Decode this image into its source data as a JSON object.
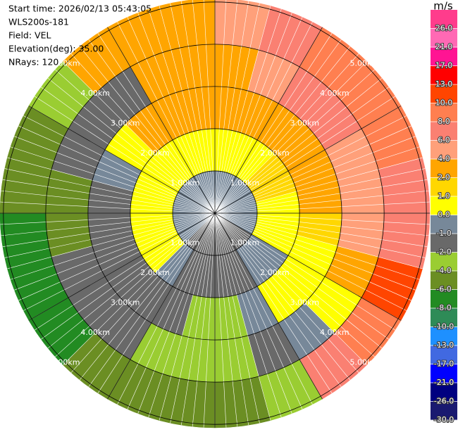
{
  "chart_data": {
    "type": "ppi",
    "header": [
      "Start time: 2026/02/13 05:43:05",
      "WLS200s-181",
      "Field: VEL",
      "Elevation(deg): 35.00",
      "NRays: 120"
    ],
    "rlim": [
      0,
      5.08
    ],
    "range_rings": [
      {
        "value": 1,
        "label": "1.00km"
      },
      {
        "value": 2,
        "label": "2.00km"
      },
      {
        "value": 3,
        "label": "3.00km"
      },
      {
        "value": 4,
        "label": "4.00km"
      },
      {
        "value": 5,
        "label": "5.00km"
      }
    ],
    "range_bins": [
      0,
      1,
      2,
      3,
      4,
      5.08
    ],
    "azimuths": [
      0,
      15,
      30,
      45,
      60,
      75,
      90,
      105,
      120,
      135,
      150,
      165,
      180,
      195,
      210,
      225,
      240,
      255,
      270,
      285,
      300,
      315,
      330,
      345
    ],
    "values": [
      [
        -1,
        0,
        2,
        2,
        4
      ],
      [
        -1,
        0,
        2,
        4,
        6
      ],
      [
        -1,
        0,
        2,
        6,
        8
      ],
      [
        -1,
        1,
        2,
        6,
        8
      ],
      [
        -1,
        1,
        2,
        4,
        8
      ],
      [
        -1,
        0,
        2,
        4,
        6
      ],
      [
        -1,
        0,
        1,
        4,
        6
      ],
      [
        -1,
        0,
        0,
        2,
        10
      ],
      [
        -2,
        -1,
        0,
        0,
        8
      ],
      [
        -2,
        -1,
        0,
        -1,
        6
      ],
      [
        -2,
        -2,
        -1,
        -2,
        -4
      ],
      [
        -2,
        -2,
        -4,
        -4,
        -6
      ],
      [
        -2,
        -2,
        -4,
        -4,
        -6
      ],
      [
        -2,
        -2,
        -2,
        -4,
        -6
      ],
      [
        -2,
        -1,
        -2,
        -2,
        -6
      ],
      [
        -1,
        0,
        -2,
        -2,
        -8
      ],
      [
        -1,
        0,
        -2,
        -2,
        -8
      ],
      [
        -1,
        0,
        -2,
        -6,
        -8
      ],
      [
        -1,
        0,
        -2,
        -6,
        -6
      ],
      [
        -1,
        0,
        -1,
        -2,
        -6
      ],
      [
        -1,
        0,
        0,
        -2,
        -4
      ],
      [
        -1,
        0,
        2,
        -2,
        2
      ],
      [
        -1,
        0,
        2,
        2,
        2
      ],
      [
        -1,
        0,
        2,
        2,
        2
      ]
    ],
    "colorbar": {
      "label": "m/s",
      "clim": [
        -30,
        30
      ],
      "ticks": [
        {
          "value": -30,
          "label": "-30.0"
        },
        {
          "value": -26,
          "label": "-26.0"
        },
        {
          "value": -21,
          "label": "-21.0"
        },
        {
          "value": -17,
          "label": "-17.0"
        },
        {
          "value": -13,
          "label": "-13.0"
        },
        {
          "value": -10,
          "label": "-10.0"
        },
        {
          "value": -8,
          "label": "-8.0"
        },
        {
          "value": -6,
          "label": "-6.0"
        },
        {
          "value": -4,
          "label": "-4.0"
        },
        {
          "value": -2,
          "label": "-2.0"
        },
        {
          "value": -1,
          "label": "-1.0"
        },
        {
          "value": 0,
          "label": "0.0"
        },
        {
          "value": 1,
          "label": "1.0"
        },
        {
          "value": 2,
          "label": "2.0"
        },
        {
          "value": 4,
          "label": "4.0"
        },
        {
          "value": 6,
          "label": "6.0"
        },
        {
          "value": 8,
          "label": "8.0"
        },
        {
          "value": 10,
          "label": "10.0"
        },
        {
          "value": 13,
          "label": "13.0"
        },
        {
          "value": 17,
          "label": "17.0"
        },
        {
          "value": 21,
          "label": "21.0"
        },
        {
          "value": 26,
          "label": "26.0"
        }
      ],
      "colors": [
        "#191970",
        "#000080",
        "#0000ff",
        "#4169e1",
        "#1e90ff",
        "#2e8b57",
        "#228b22",
        "#6b8e23",
        "#9acd32",
        "#696969",
        "#778899",
        "#ffff00",
        "#ffd700",
        "#ffa500",
        "#ffa07a",
        "#fa8072",
        "#ff7f50",
        "#ff4500",
        "#ff0000",
        "#ff1493",
        "#ff69b4",
        "#ff3c8c"
      ]
    }
  }
}
